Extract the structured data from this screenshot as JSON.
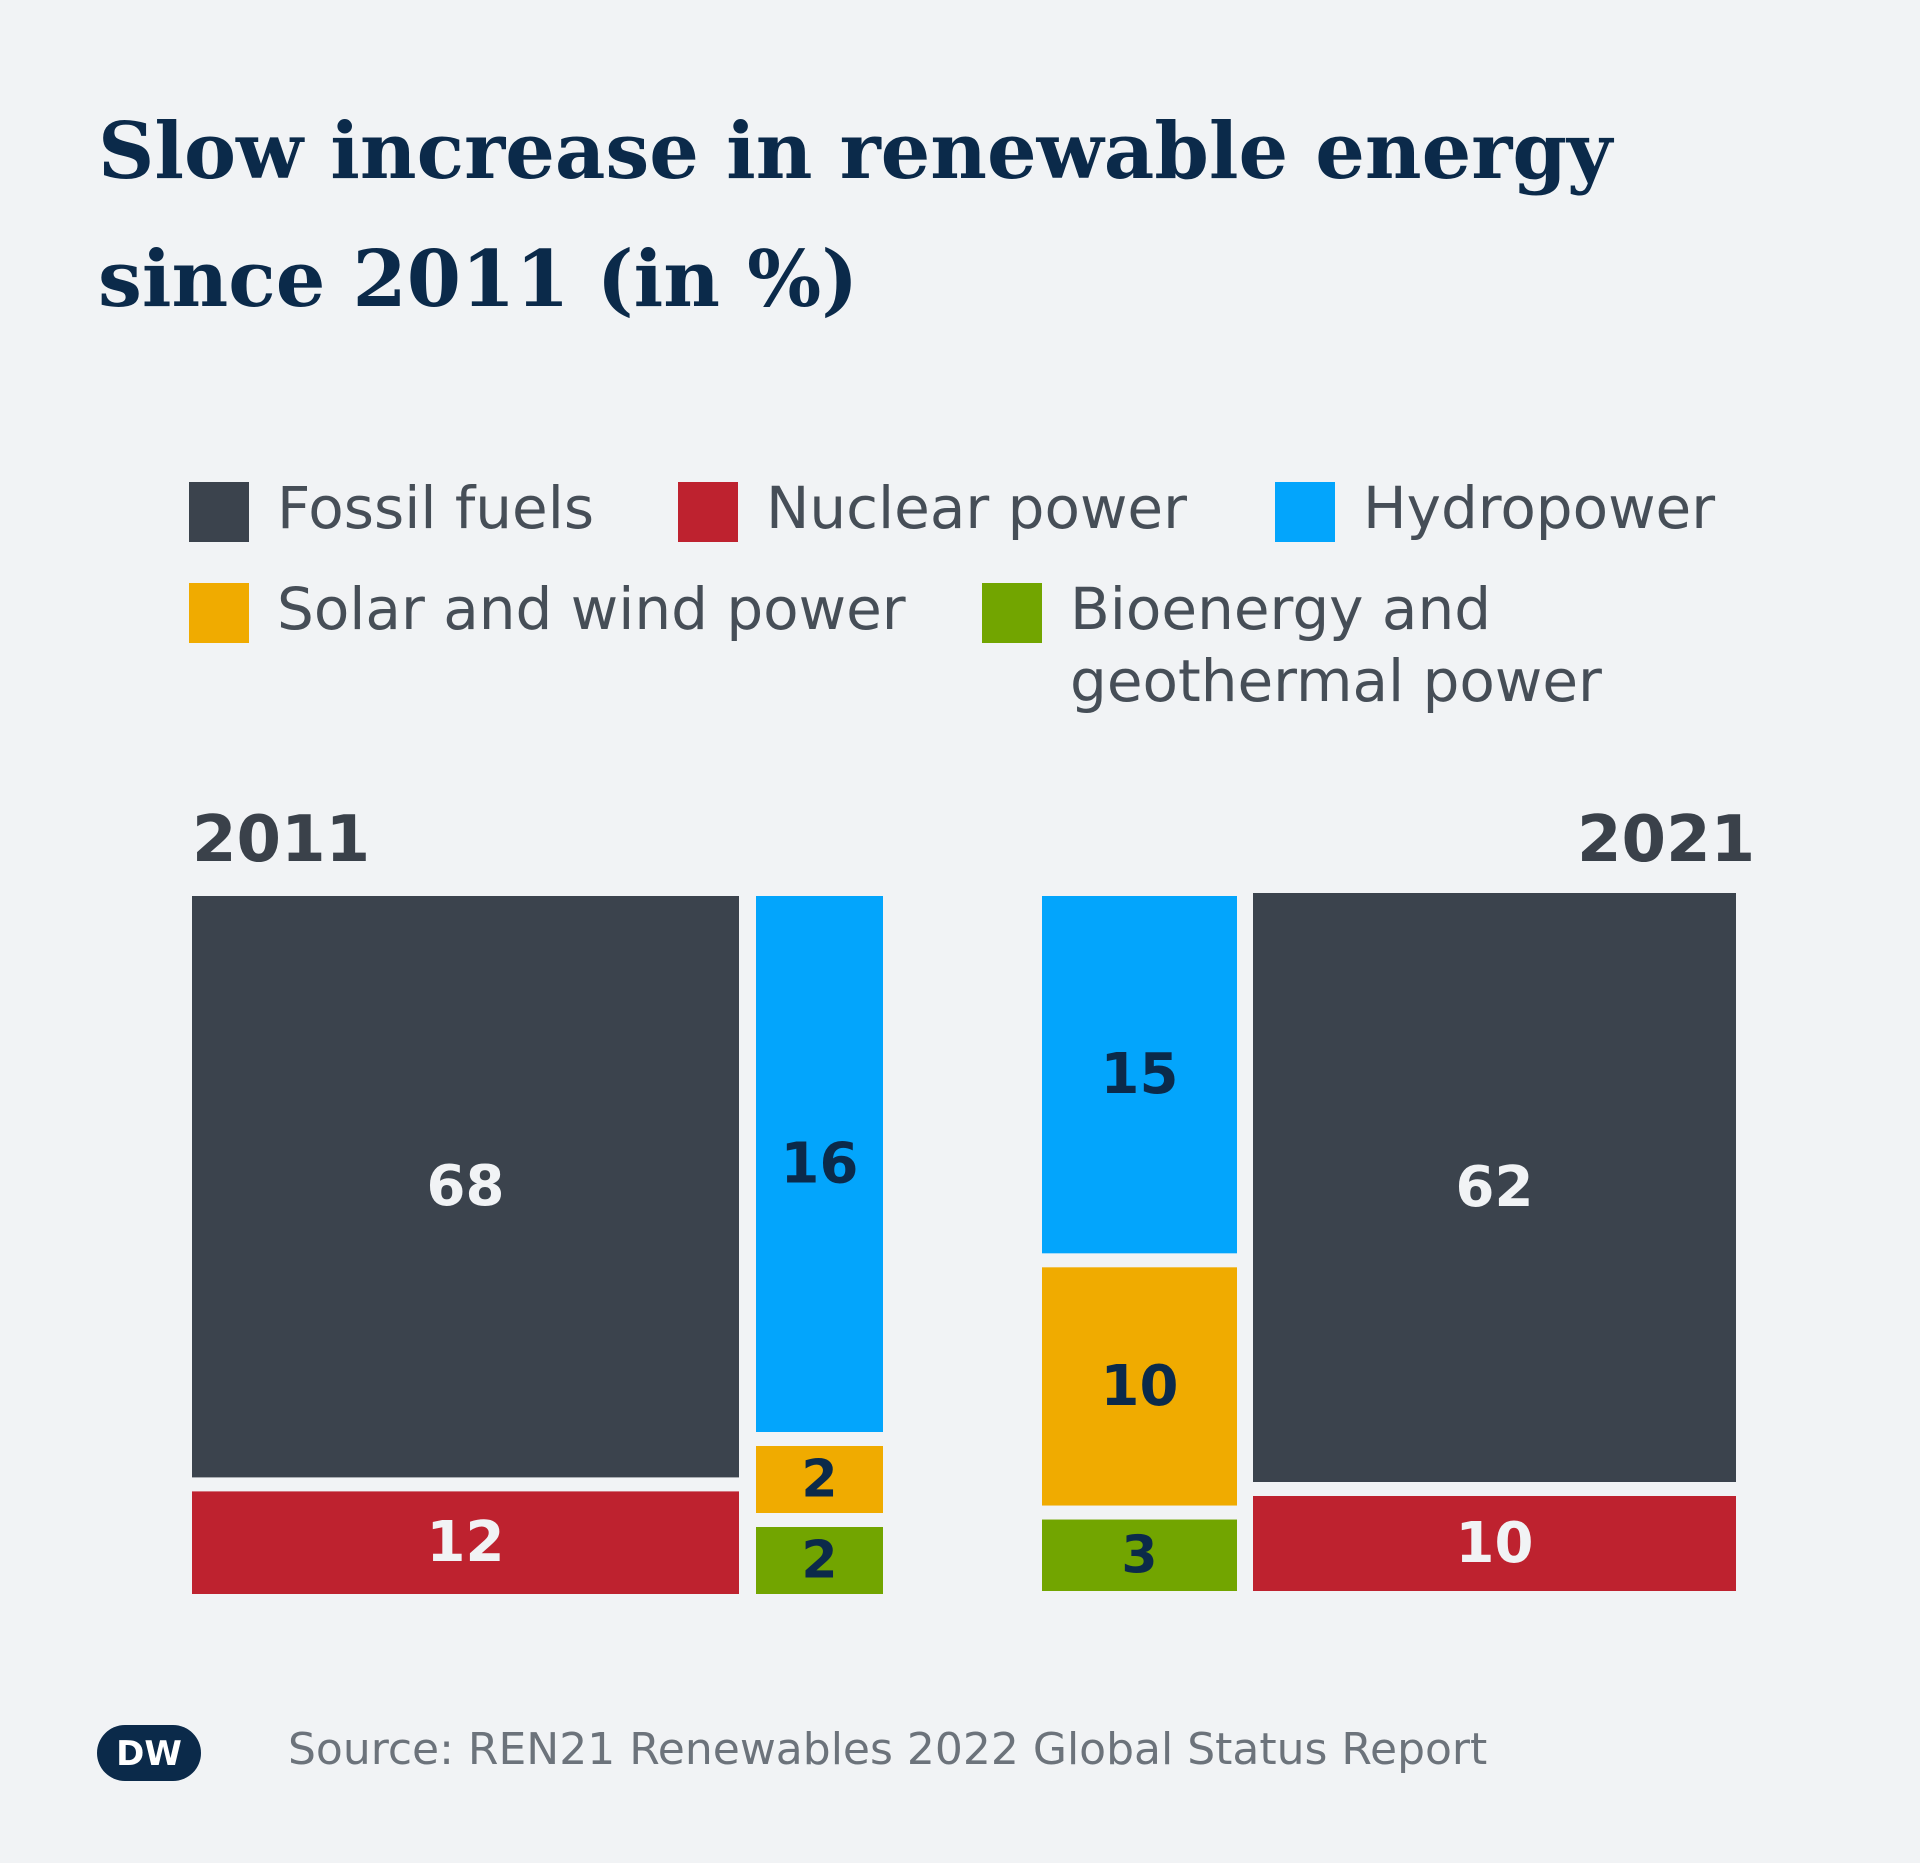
{
  "title": {
    "line1": "Slow increase in renewable energy",
    "line2": "since 2011 (in %)"
  },
  "legend": [
    {
      "name": "Fossil fuels",
      "color": "#3b434d"
    },
    {
      "name": "Nuclear power",
      "color": "#be222f"
    },
    {
      "name": "Hydropower",
      "color": "#03a5fc"
    },
    {
      "name": "Solar and wind power",
      "color": "#f0ab00"
    },
    {
      "name": "Bioenergy and geothermal power",
      "color": "#72a500"
    }
  ],
  "chart_data": {
    "type": "treemap",
    "groups": [
      {
        "year": "2011",
        "values": [
          {
            "category": "Fossil fuels",
            "value": 68
          },
          {
            "category": "Nuclear power",
            "value": 12
          },
          {
            "category": "Hydropower",
            "value": 16
          },
          {
            "category": "Solar and wind power",
            "value": 2
          },
          {
            "category": "Bioenergy and geothermal power",
            "value": 2
          }
        ]
      },
      {
        "year": "2021",
        "values": [
          {
            "category": "Hydropower",
            "value": 15
          },
          {
            "category": "Solar and wind power",
            "value": 10
          },
          {
            "category": "Bioenergy and geothermal power",
            "value": 3
          },
          {
            "category": "Fossil fuels",
            "value": 62
          },
          {
            "category": "Nuclear power",
            "value": 10
          }
        ]
      }
    ]
  },
  "source": "Source: REN21 Renewables 2022 Global Status Report",
  "logo": {
    "text": "DW",
    "icon": "dw-logo-icon"
  }
}
